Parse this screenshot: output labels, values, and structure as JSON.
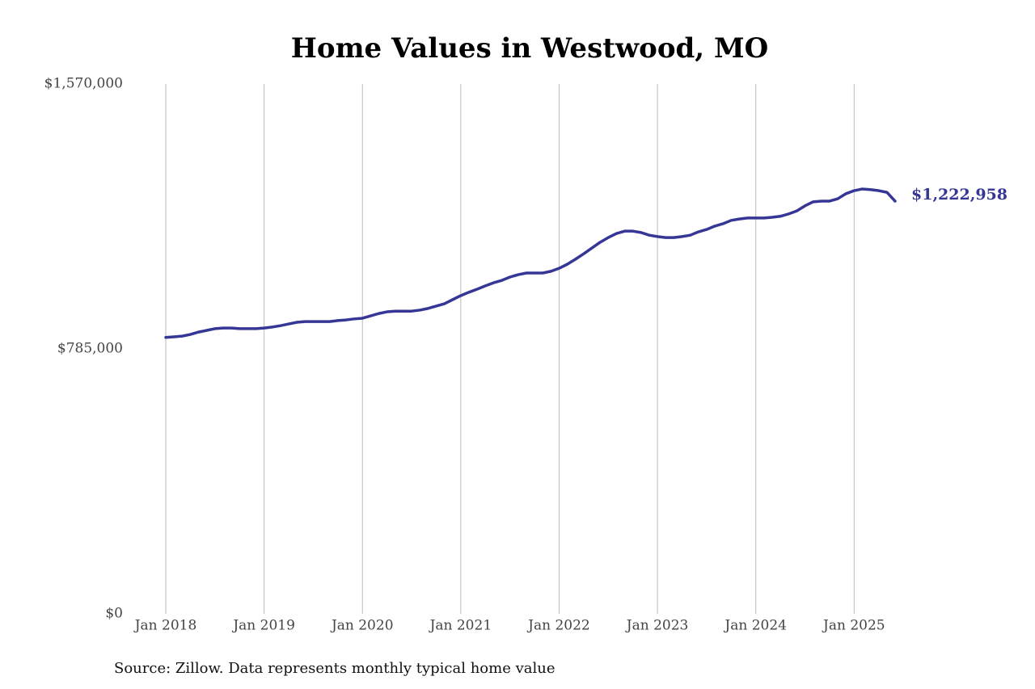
{
  "chart_data": {
    "type": "line",
    "title": "Home Values in Westwood, MO",
    "source": "Source: Zillow. Data represents monthly typical home value",
    "x": [
      "2018-01",
      "2018-02",
      "2018-03",
      "2018-04",
      "2018-05",
      "2018-06",
      "2018-07",
      "2018-08",
      "2018-09",
      "2018-10",
      "2018-11",
      "2018-12",
      "2019-01",
      "2019-02",
      "2019-03",
      "2019-04",
      "2019-05",
      "2019-06",
      "2019-07",
      "2019-08",
      "2019-09",
      "2019-10",
      "2019-11",
      "2019-12",
      "2020-01",
      "2020-02",
      "2020-03",
      "2020-04",
      "2020-05",
      "2020-06",
      "2020-07",
      "2020-08",
      "2020-09",
      "2020-10",
      "2020-11",
      "2020-12",
      "2021-01",
      "2021-02",
      "2021-03",
      "2021-04",
      "2021-05",
      "2021-06",
      "2021-07",
      "2021-08",
      "2021-09",
      "2021-10",
      "2021-11",
      "2021-12",
      "2022-01",
      "2022-02",
      "2022-03",
      "2022-04",
      "2022-05",
      "2022-06",
      "2022-07",
      "2022-08",
      "2022-09",
      "2022-10",
      "2022-11",
      "2022-12",
      "2023-01",
      "2023-02",
      "2023-03",
      "2023-04",
      "2023-05",
      "2023-06",
      "2023-07",
      "2023-08",
      "2023-09",
      "2023-10",
      "2023-11",
      "2023-12",
      "2024-01",
      "2024-02",
      "2024-03",
      "2024-04",
      "2024-05",
      "2024-06",
      "2024-07",
      "2024-08",
      "2024-09",
      "2024-10",
      "2024-11",
      "2024-12",
      "2025-01",
      "2025-02",
      "2025-03",
      "2025-04",
      "2025-05",
      "2025-06"
    ],
    "series": [
      {
        "name": "Westwood, MO",
        "color": "#363696",
        "values": [
          819000,
          821000,
          823000,
          828000,
          835000,
          840000,
          845000,
          847000,
          847000,
          845000,
          845000,
          845000,
          847000,
          850000,
          854000,
          859000,
          864000,
          866000,
          866000,
          866000,
          866000,
          869000,
          871000,
          874000,
          876000,
          883000,
          890000,
          895000,
          897000,
          897000,
          897000,
          900000,
          905000,
          912000,
          919000,
          931000,
          943000,
          953000,
          962000,
          972000,
          981000,
          988000,
          998000,
          1005000,
          1010000,
          1010000,
          1010000,
          1015000,
          1024000,
          1036000,
          1051000,
          1067000,
          1084000,
          1101000,
          1115000,
          1127000,
          1134000,
          1134000,
          1130000,
          1122000,
          1118000,
          1115000,
          1115000,
          1118000,
          1122000,
          1132000,
          1139000,
          1149000,
          1156000,
          1166000,
          1170000,
          1173000,
          1173000,
          1173000,
          1175000,
          1178000,
          1185000,
          1194000,
          1209000,
          1221000,
          1223000,
          1223000,
          1230000,
          1245000,
          1254000,
          1259000,
          1257000,
          1254000,
          1249000,
          1222958
        ],
        "value_labels": [
          null,
          null,
          null,
          null,
          null,
          null,
          null,
          null,
          null,
          null,
          null,
          null,
          null,
          null,
          null,
          null,
          null,
          null,
          null,
          null,
          null,
          null,
          null,
          null,
          null,
          null,
          null,
          null,
          null,
          null,
          null,
          null,
          null,
          null,
          null,
          null,
          null,
          null,
          null,
          null,
          null,
          null,
          null,
          null,
          null,
          null,
          null,
          null,
          null,
          null,
          null,
          null,
          null,
          null,
          null,
          null,
          null,
          null,
          null,
          null,
          null,
          null,
          null,
          null,
          null,
          null,
          null,
          null,
          null,
          null,
          null,
          null,
          null,
          null,
          null,
          null,
          null,
          null,
          null,
          null,
          null,
          null,
          null,
          null,
          null,
          null,
          null,
          null,
          null,
          "$1,222,958"
        ]
      }
    ],
    "xlim": [
      "2018-01",
      "2025-06"
    ],
    "xticks": [
      {
        "value": "2018-01",
        "label": "Jan 2018"
      },
      {
        "value": "2019-01",
        "label": "Jan 2019"
      },
      {
        "value": "2020-01",
        "label": "Jan 2020"
      },
      {
        "value": "2021-01",
        "label": "Jan 2021"
      },
      {
        "value": "2022-01",
        "label": "Jan 2022"
      },
      {
        "value": "2023-01",
        "label": "Jan 2023"
      },
      {
        "value": "2024-01",
        "label": "Jan 2024"
      },
      {
        "value": "2025-01",
        "label": "Jan 2025"
      }
    ],
    "ylim": [
      0,
      1570000
    ],
    "yticks": [
      {
        "value": 0,
        "label": "$0"
      },
      {
        "value": 785000,
        "label": "$785,000"
      },
      {
        "value": 1570000,
        "label": "$1,570,000"
      }
    ],
    "grid": "x"
  }
}
